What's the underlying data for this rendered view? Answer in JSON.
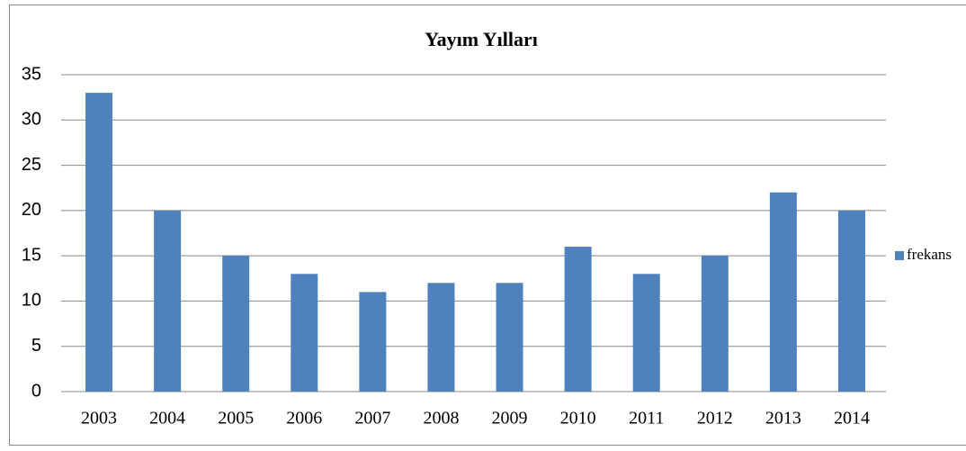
{
  "chart_data": {
    "type": "bar",
    "title": "Yayım Yılları",
    "categories": [
      "2003",
      "2004",
      "2005",
      "2006",
      "2007",
      "2008",
      "2009",
      "2010",
      "2011",
      "2012",
      "2013",
      "2014"
    ],
    "series": [
      {
        "name": "frekans",
        "color": "#4f81bd",
        "values": [
          33,
          20,
          15,
          13,
          11,
          12,
          12,
          16,
          13,
          15,
          22,
          20
        ]
      }
    ],
    "ylim": [
      0,
      35
    ],
    "yticks": [
      0,
      5,
      10,
      15,
      20,
      25,
      30,
      35
    ],
    "grid": true,
    "legend": "right"
  }
}
